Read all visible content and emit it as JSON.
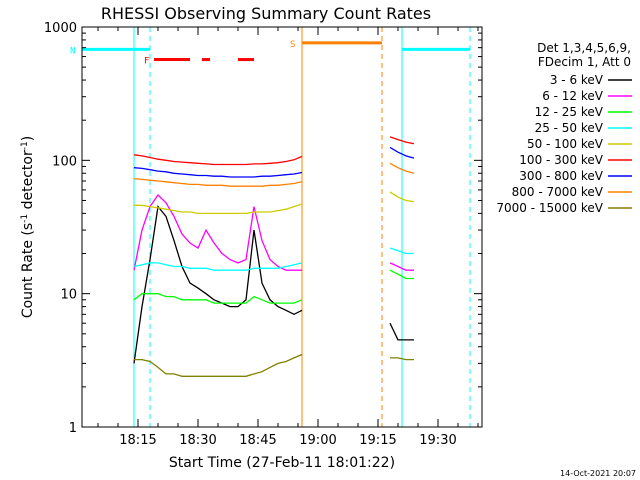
{
  "chart_data": {
    "type": "line",
    "title": "RHESSI Observing Summary Count Rates",
    "xlabel": "Start Time (27-Feb-11 18:01:22)",
    "ylabel": "Count Rate (s⁻¹ detector⁻¹)",
    "ylabel_parts": {
      "pre": "Count Rate (s",
      "sup1": "-1",
      "mid": " detector",
      "sup2": "-1",
      "post": ")"
    },
    "yscale": "log",
    "xlim": [
      "18:01",
      "19:41"
    ],
    "ylim": [
      1,
      1000
    ],
    "x_ticks": [
      "18:15",
      "18:30",
      "18:45",
      "19:00",
      "19:15",
      "19:30"
    ],
    "y_ticks": [
      "1",
      "10",
      "100",
      "1000"
    ],
    "legend_title": [
      "Det 1,3,4,5,6,9,",
      "FDecim 1, Att 0"
    ],
    "legend_position": "right",
    "footer": "14-Oct-2021 20:07",
    "flags": [
      {
        "label": "N",
        "color": "#00ffff",
        "y": 680,
        "segments": [
          [
            "18:01",
            "18:18"
          ],
          [
            "19:21",
            "19:38"
          ]
        ]
      },
      {
        "label": "F",
        "color": "#ff0000",
        "y": 570,
        "segments": [
          [
            "18:19",
            "18:28"
          ],
          [
            "18:31",
            "18:33"
          ],
          [
            "18:40",
            "18:44"
          ]
        ]
      },
      {
        "label": "S",
        "color": "#ff8000",
        "y": 760,
        "segments": [
          [
            "18:56",
            "19:16"
          ]
        ]
      }
    ],
    "markers": [
      {
        "time": "18:01",
        "color": "#00ffff",
        "style": "solid"
      },
      {
        "time": "18:14",
        "color": "#00ffff",
        "style": "solid"
      },
      {
        "time": "18:18",
        "color": "#00ffff",
        "style": "dashed"
      },
      {
        "time": "18:56",
        "color": "#ff8000",
        "style": "solid"
      },
      {
        "time": "19:16",
        "color": "#ff8000",
        "style": "dashed"
      },
      {
        "time": "19:21",
        "color": "#00ffff",
        "style": "solid"
      },
      {
        "time": "19:38",
        "color": "#00ffff",
        "style": "dashed"
      }
    ],
    "series": [
      {
        "name": "3 - 6 keV",
        "color": "#000000",
        "points": [
          [
            "18:14",
            3
          ],
          [
            "18:16",
            8
          ],
          [
            "18:18",
            18
          ],
          [
            "18:20",
            45
          ],
          [
            "18:22",
            38
          ],
          [
            "18:24",
            25
          ],
          [
            "18:26",
            16
          ],
          [
            "18:28",
            12
          ],
          [
            "18:30",
            11
          ],
          [
            "18:32",
            10
          ],
          [
            "18:34",
            9
          ],
          [
            "18:36",
            8.5
          ],
          [
            "18:38",
            8
          ],
          [
            "18:40",
            8
          ],
          [
            "18:42",
            9
          ],
          [
            "18:44",
            30
          ],
          [
            "18:46",
            12
          ],
          [
            "18:48",
            9
          ],
          [
            "18:50",
            8
          ],
          [
            "18:52",
            7.5
          ],
          [
            "18:54",
            7
          ],
          [
            "18:56",
            7.5
          ],
          null,
          [
            "19:18",
            6
          ],
          [
            "19:20",
            4.5
          ],
          [
            "19:22",
            4.5
          ],
          [
            "19:24",
            4.5
          ]
        ]
      },
      {
        "name": "6 - 12 keV",
        "color": "#ff00ff",
        "points": [
          [
            "18:14",
            15
          ],
          [
            "18:16",
            30
          ],
          [
            "18:18",
            45
          ],
          [
            "18:20",
            55
          ],
          [
            "18:22",
            48
          ],
          [
            "18:24",
            38
          ],
          [
            "18:26",
            28
          ],
          [
            "18:28",
            24
          ],
          [
            "18:30",
            22
          ],
          [
            "18:32",
            30
          ],
          [
            "18:34",
            24
          ],
          [
            "18:36",
            20
          ],
          [
            "18:38",
            18
          ],
          [
            "18:40",
            17
          ],
          [
            "18:42",
            18
          ],
          [
            "18:44",
            45
          ],
          [
            "18:46",
            25
          ],
          [
            "18:48",
            18
          ],
          [
            "18:50",
            16
          ],
          [
            "18:52",
            15
          ],
          [
            "18:54",
            15
          ],
          [
            "18:56",
            15
          ],
          null,
          [
            "19:18",
            17
          ],
          [
            "19:20",
            16
          ],
          [
            "19:22",
            15
          ],
          [
            "19:24",
            15
          ]
        ]
      },
      {
        "name": "12 - 25 keV",
        "color": "#00ff00",
        "points": [
          [
            "18:14",
            9
          ],
          [
            "18:16",
            10
          ],
          [
            "18:18",
            10
          ],
          [
            "18:20",
            10
          ],
          [
            "18:22",
            9.5
          ],
          [
            "18:24",
            9.5
          ],
          [
            "18:26",
            9
          ],
          [
            "18:28",
            9
          ],
          [
            "18:30",
            9
          ],
          [
            "18:32",
            9
          ],
          [
            "18:34",
            8.5
          ],
          [
            "18:36",
            8.5
          ],
          [
            "18:38",
            8.5
          ],
          [
            "18:40",
            8.5
          ],
          [
            "18:42",
            8.5
          ],
          [
            "18:44",
            9.5
          ],
          [
            "18:46",
            9
          ],
          [
            "18:48",
            8.5
          ],
          [
            "18:50",
            8.5
          ],
          [
            "18:52",
            8.5
          ],
          [
            "18:54",
            8.5
          ],
          [
            "18:56",
            9
          ],
          null,
          [
            "19:18",
            15
          ],
          [
            "19:20",
            14
          ],
          [
            "19:22",
            13
          ],
          [
            "19:24",
            13
          ]
        ]
      },
      {
        "name": "25 - 50 keV",
        "color": "#00ffff",
        "points": [
          [
            "18:14",
            16
          ],
          [
            "18:16",
            16.5
          ],
          [
            "18:18",
            17
          ],
          [
            "18:20",
            17
          ],
          [
            "18:22",
            16.5
          ],
          [
            "18:24",
            16
          ],
          [
            "18:26",
            16
          ],
          [
            "18:28",
            15.5
          ],
          [
            "18:30",
            15.5
          ],
          [
            "18:32",
            15.5
          ],
          [
            "18:34",
            15
          ],
          [
            "18:36",
            15
          ],
          [
            "18:38",
            15
          ],
          [
            "18:40",
            15
          ],
          [
            "18:42",
            15
          ],
          [
            "18:44",
            15.5
          ],
          [
            "18:46",
            15.5
          ],
          [
            "18:48",
            15.5
          ],
          [
            "18:50",
            15.5
          ],
          [
            "18:52",
            16
          ],
          [
            "18:54",
            16.5
          ],
          [
            "18:56",
            17
          ],
          null,
          [
            "19:18",
            22
          ],
          [
            "19:20",
            21
          ],
          [
            "19:22",
            20
          ],
          [
            "19:24",
            20
          ]
        ]
      },
      {
        "name": "50 - 100 keV",
        "color": "#cccc00",
        "points": [
          [
            "18:14",
            46
          ],
          [
            "18:16",
            46
          ],
          [
            "18:18",
            45
          ],
          [
            "18:20",
            44
          ],
          [
            "18:22",
            43
          ],
          [
            "18:24",
            42
          ],
          [
            "18:26",
            41
          ],
          [
            "18:28",
            41
          ],
          [
            "18:30",
            40
          ],
          [
            "18:32",
            40
          ],
          [
            "18:34",
            40
          ],
          [
            "18:36",
            40
          ],
          [
            "18:38",
            40
          ],
          [
            "18:40",
            40
          ],
          [
            "18:42",
            40
          ],
          [
            "18:44",
            41
          ],
          [
            "18:46",
            41
          ],
          [
            "18:48",
            41
          ],
          [
            "18:50",
            42
          ],
          [
            "18:52",
            43
          ],
          [
            "18:54",
            45
          ],
          [
            "18:56",
            47
          ],
          null,
          [
            "19:18",
            58
          ],
          [
            "19:20",
            53
          ],
          [
            "19:22",
            50
          ],
          [
            "19:24",
            49
          ]
        ]
      },
      {
        "name": "100 - 300 keV",
        "color": "#ff0000",
        "points": [
          [
            "18:14",
            110
          ],
          [
            "18:16",
            108
          ],
          [
            "18:18",
            105
          ],
          [
            "18:20",
            102
          ],
          [
            "18:22",
            100
          ],
          [
            "18:24",
            98
          ],
          [
            "18:26",
            97
          ],
          [
            "18:28",
            96
          ],
          [
            "18:30",
            95
          ],
          [
            "18:32",
            94
          ],
          [
            "18:34",
            93
          ],
          [
            "18:36",
            93
          ],
          [
            "18:38",
            93
          ],
          [
            "18:40",
            93
          ],
          [
            "18:42",
            93
          ],
          [
            "18:44",
            94
          ],
          [
            "18:46",
            94
          ],
          [
            "18:48",
            95
          ],
          [
            "18:50",
            96
          ],
          [
            "18:52",
            98
          ],
          [
            "18:54",
            101
          ],
          [
            "18:56",
            107
          ],
          null,
          [
            "19:18",
            150
          ],
          [
            "19:20",
            143
          ],
          [
            "19:22",
            137
          ],
          [
            "19:24",
            133
          ]
        ]
      },
      {
        "name": "300 - 800 keV",
        "color": "#0000ff",
        "points": [
          [
            "18:14",
            88
          ],
          [
            "18:16",
            87
          ],
          [
            "18:18",
            85
          ],
          [
            "18:20",
            83
          ],
          [
            "18:22",
            82
          ],
          [
            "18:24",
            80
          ],
          [
            "18:26",
            79
          ],
          [
            "18:28",
            78
          ],
          [
            "18:30",
            77
          ],
          [
            "18:32",
            77
          ],
          [
            "18:34",
            76
          ],
          [
            "18:36",
            76
          ],
          [
            "18:38",
            75
          ],
          [
            "18:40",
            75
          ],
          [
            "18:42",
            75
          ],
          [
            "18:44",
            75
          ],
          [
            "18:46",
            76
          ],
          [
            "18:48",
            76
          ],
          [
            "18:50",
            77
          ],
          [
            "18:52",
            78
          ],
          [
            "18:54",
            79
          ],
          [
            "18:56",
            81
          ],
          null,
          [
            "19:18",
            125
          ],
          [
            "19:20",
            115
          ],
          [
            "19:22",
            108
          ],
          [
            "19:24",
            104
          ]
        ]
      },
      {
        "name": "800 - 7000 keV",
        "color": "#ff8000",
        "points": [
          [
            "18:14",
            73
          ],
          [
            "18:16",
            72
          ],
          [
            "18:18",
            71
          ],
          [
            "18:20",
            70
          ],
          [
            "18:22",
            69
          ],
          [
            "18:24",
            68
          ],
          [
            "18:26",
            67
          ],
          [
            "18:28",
            66
          ],
          [
            "18:30",
            66
          ],
          [
            "18:32",
            65
          ],
          [
            "18:34",
            65
          ],
          [
            "18:36",
            65
          ],
          [
            "18:38",
            64
          ],
          [
            "18:40",
            64
          ],
          [
            "18:42",
            64
          ],
          [
            "18:44",
            64
          ],
          [
            "18:46",
            64
          ],
          [
            "18:48",
            65
          ],
          [
            "18:50",
            65
          ],
          [
            "18:52",
            66
          ],
          [
            "18:54",
            67
          ],
          [
            "18:56",
            69
          ],
          null,
          [
            "19:18",
            95
          ],
          [
            "19:20",
            88
          ],
          [
            "19:22",
            83
          ],
          [
            "19:24",
            80
          ]
        ]
      },
      {
        "name": "7000 - 15000 keV",
        "color": "#808000",
        "points": [
          [
            "18:14",
            3.2
          ],
          [
            "18:16",
            3.2
          ],
          [
            "18:18",
            3.1
          ],
          [
            "18:20",
            2.8
          ],
          [
            "18:22",
            2.5
          ],
          [
            "18:24",
            2.5
          ],
          [
            "18:26",
            2.4
          ],
          [
            "18:28",
            2.4
          ],
          [
            "18:30",
            2.4
          ],
          [
            "18:32",
            2.4
          ],
          [
            "18:34",
            2.4
          ],
          [
            "18:36",
            2.4
          ],
          [
            "18:38",
            2.4
          ],
          [
            "18:40",
            2.4
          ],
          [
            "18:42",
            2.4
          ],
          [
            "18:44",
            2.5
          ],
          [
            "18:46",
            2.6
          ],
          [
            "18:48",
            2.8
          ],
          [
            "18:50",
            3.0
          ],
          [
            "18:52",
            3.1
          ],
          [
            "18:54",
            3.3
          ],
          [
            "18:56",
            3.5
          ],
          null,
          [
            "19:18",
            3.3
          ],
          [
            "19:20",
            3.3
          ],
          [
            "19:22",
            3.2
          ],
          [
            "19:24",
            3.2
          ]
        ]
      }
    ]
  }
}
